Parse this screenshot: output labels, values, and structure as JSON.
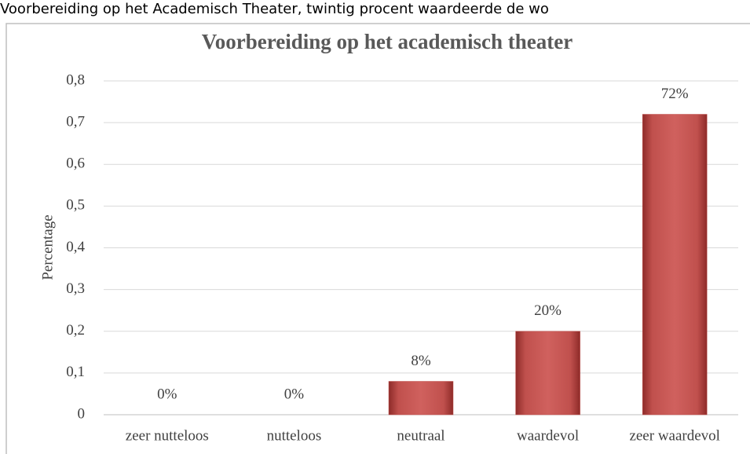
{
  "caption": "Voorbereiding op het Academisch Theater, twintig procent waardeerde de wo",
  "chart_data": {
    "type": "bar",
    "title": "Voorbereiding op het academisch theater",
    "ylabel": "Percentage",
    "categories": [
      "zeer nutteloos",
      "nutteloos",
      "neutraal",
      "waardevol",
      "zeer waardevol"
    ],
    "values": [
      0,
      0,
      0.08,
      0.2,
      0.72
    ],
    "value_labels": [
      "0%",
      "0%",
      "8%",
      "20%",
      "72%"
    ],
    "color": "#c0504d",
    "ylim": [
      0,
      0.8
    ],
    "yticks": [
      0,
      {
        "value": 0.1,
        "label": "0,1"
      },
      {
        "value": 0.2,
        "label": "0,2"
      },
      {
        "value": 0.3,
        "label": "0,3"
      },
      {
        "value": 0.4,
        "label": "0,4"
      },
      {
        "value": 0.5,
        "label": "0,5"
      },
      {
        "value": 0.6,
        "label": "0,6"
      },
      {
        "value": 0.7,
        "label": "0,7"
      },
      {
        "value": 0.8,
        "label": "0,8"
      }
    ],
    "grid": true
  }
}
